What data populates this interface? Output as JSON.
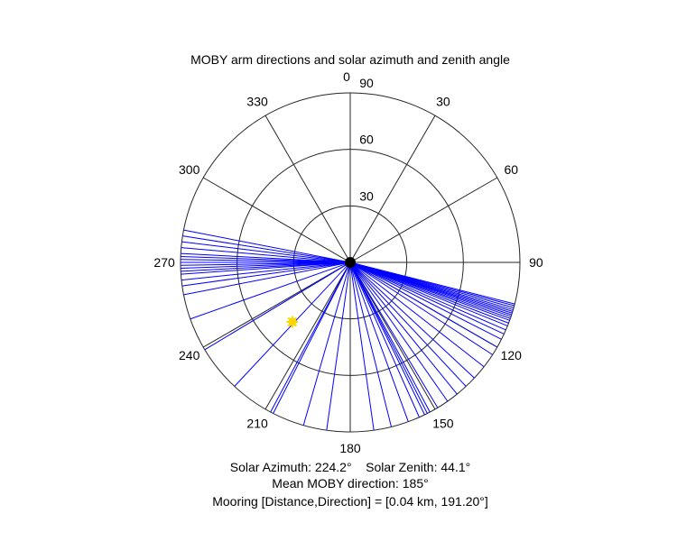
{
  "chart_data": {
    "type": "polar",
    "title": "MOBY arm directions and solar azimuth and zenith angle",
    "theta_zero_location": "north",
    "theta_direction": "clockwise",
    "theta_ticks": [
      "0",
      "30",
      "60",
      "90",
      "120",
      "150",
      "180",
      "210",
      "240",
      "270",
      "300",
      "330"
    ],
    "theta_tick_values": [
      0,
      30,
      60,
      90,
      120,
      150,
      180,
      210,
      240,
      270,
      300,
      330
    ],
    "r_ticks": [
      "30",
      "60",
      "90"
    ],
    "r_tick_values": [
      30,
      60,
      90
    ],
    "rlim": [
      0,
      90
    ],
    "grid": true,
    "arm_color": "#0000ff",
    "arm_length": 90,
    "arm_directions": [
      104.2,
      104.8,
      105.5,
      106.2,
      106.8,
      107.4,
      108.0,
      108.6,
      109.3,
      110.0,
      111.0,
      112.0,
      113.5,
      115.0,
      117.0,
      120.0,
      123.0,
      128.0,
      133.0,
      137.0,
      141.0,
      145.0,
      149.0,
      152.0,
      153.0,
      154.0,
      156.0,
      160.0,
      166.0,
      172.0,
      188.0,
      196.0,
      207.0,
      208.0,
      223.0,
      239.0,
      250.5,
      259.0,
      262.0,
      264.0,
      266.0,
      267.0,
      268.0,
      269.0,
      270.0,
      271.0,
      272.0,
      273.0,
      275.0,
      277.0,
      279.0,
      281.0
    ],
    "center_marker_color": "#000000",
    "sun": {
      "azimuth": 224.2,
      "zenith": 44.1,
      "color": "#ffd700"
    },
    "annotations": {
      "solar_line": "Solar Azimuth: 224.2°    Solar Zenith: 44.1°",
      "mean_direction_line": "Mean MOBY direction: 185°",
      "mooring_line": "Mooring [Distance,Direction] = [0.04 km, 191.20°]"
    }
  }
}
